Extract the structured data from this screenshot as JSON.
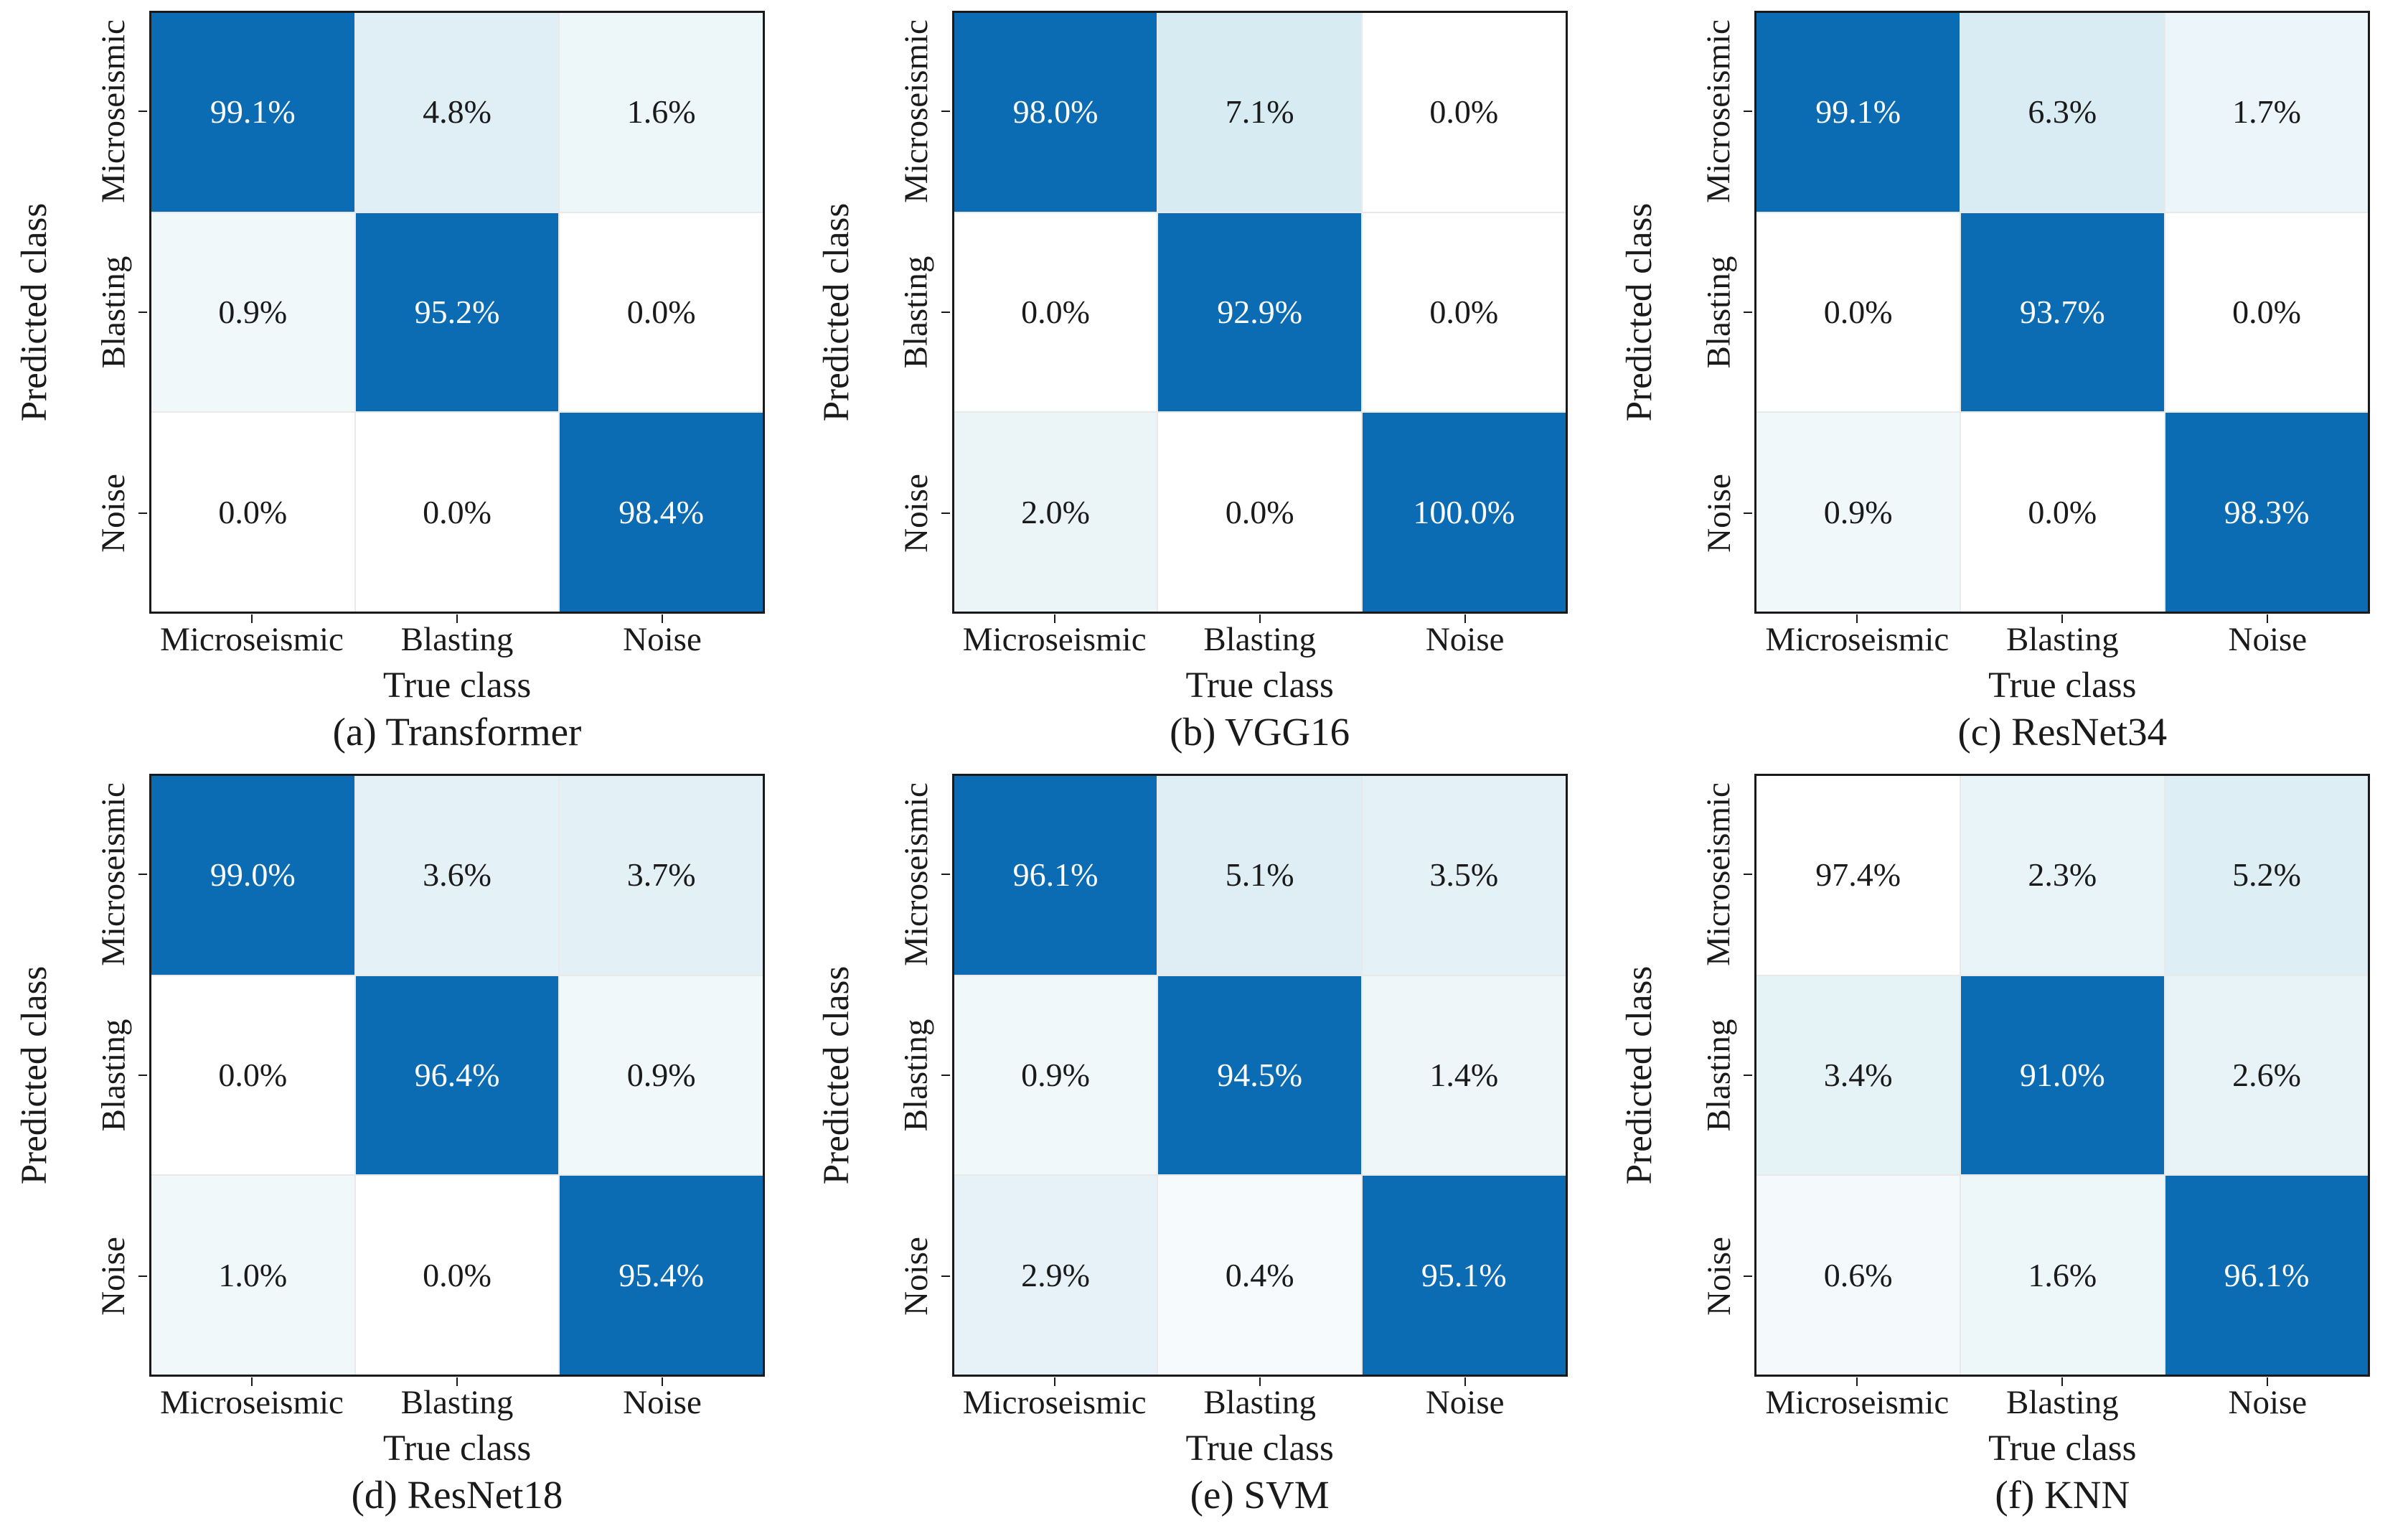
{
  "figure": {
    "y_axis_title": "Predicted class",
    "x_axis_title": "True class",
    "classes": [
      "Microseismic",
      "Blasting",
      "Noise"
    ]
  },
  "colors": {
    "diagonal_blue": "#0b6cb4",
    "diagonal_text": "#ffffff",
    "offdiag_text": "#1a1a1a",
    "grid_border": "#1a1a1a",
    "cell_separator": "#e9e9e9",
    "background": "#ffffff"
  },
  "panels": [
    {
      "caption": "(a) Transformer",
      "cells": [
        [
          {
            "label": "99.1%",
            "bg": "#0b6cb4",
            "fg": "#ffffff"
          },
          {
            "label": "4.8%",
            "bg": "#dfeff5",
            "fg": "#1a1a1a"
          },
          {
            "label": "1.6%",
            "bg": "#edf6f9",
            "fg": "#1a1a1a"
          }
        ],
        [
          {
            "label": "0.9%",
            "bg": "#f1f8fa",
            "fg": "#1a1a1a"
          },
          {
            "label": "95.2%",
            "bg": "#0b6cb4",
            "fg": "#ffffff"
          },
          {
            "label": "0.0%",
            "bg": "#ffffff",
            "fg": "#1a1a1a"
          }
        ],
        [
          {
            "label": "0.0%",
            "bg": "#ffffff",
            "fg": "#1a1a1a"
          },
          {
            "label": "0.0%",
            "bg": "#ffffff",
            "fg": "#1a1a1a"
          },
          {
            "label": "98.4%",
            "bg": "#0b6cb4",
            "fg": "#ffffff"
          }
        ]
      ]
    },
    {
      "caption": "(b) VGG16",
      "cells": [
        [
          {
            "label": "98.0%",
            "bg": "#0b6cb4",
            "fg": "#ffffff"
          },
          {
            "label": "7.1%",
            "bg": "#d6ebf2",
            "fg": "#1a1a1a"
          },
          {
            "label": "0.0%",
            "bg": "#ffffff",
            "fg": "#1a1a1a"
          }
        ],
        [
          {
            "label": "0.0%",
            "bg": "#ffffff",
            "fg": "#1a1a1a"
          },
          {
            "label": "92.9%",
            "bg": "#0b6cb4",
            "fg": "#ffffff"
          },
          {
            "label": "0.0%",
            "bg": "#ffffff",
            "fg": "#1a1a1a"
          }
        ],
        [
          {
            "label": "2.0%",
            "bg": "#ebf5f8",
            "fg": "#1a1a1a"
          },
          {
            "label": "0.0%",
            "bg": "#ffffff",
            "fg": "#1a1a1a"
          },
          {
            "label": "100.0%",
            "bg": "#0b6cb4",
            "fg": "#ffffff"
          }
        ]
      ]
    },
    {
      "caption": "(c) ResNet34",
      "cells": [
        [
          {
            "label": "99.1%",
            "bg": "#0b6cb4",
            "fg": "#ffffff"
          },
          {
            "label": "6.3%",
            "bg": "#d9ecf3",
            "fg": "#1a1a1a"
          },
          {
            "label": "1.7%",
            "bg": "#ecf5f9",
            "fg": "#1a1a1a"
          }
        ],
        [
          {
            "label": "0.0%",
            "bg": "#ffffff",
            "fg": "#1a1a1a"
          },
          {
            "label": "93.7%",
            "bg": "#0b6cb4",
            "fg": "#ffffff"
          },
          {
            "label": "0.0%",
            "bg": "#ffffff",
            "fg": "#1a1a1a"
          }
        ],
        [
          {
            "label": "0.9%",
            "bg": "#f1f8fa",
            "fg": "#1a1a1a"
          },
          {
            "label": "0.0%",
            "bg": "#ffffff",
            "fg": "#1a1a1a"
          },
          {
            "label": "98.3%",
            "bg": "#0b6cb4",
            "fg": "#ffffff"
          }
        ]
      ]
    },
    {
      "caption": "(d) ResNet18",
      "cells": [
        [
          {
            "label": "99.0%",
            "bg": "#0b6cb4",
            "fg": "#ffffff"
          },
          {
            "label": "3.6%",
            "bg": "#e4f1f6",
            "fg": "#1a1a1a"
          },
          {
            "label": "3.7%",
            "bg": "#e3f1f6",
            "fg": "#1a1a1a"
          }
        ],
        [
          {
            "label": "0.0%",
            "bg": "#ffffff",
            "fg": "#1a1a1a"
          },
          {
            "label": "96.4%",
            "bg": "#0b6cb4",
            "fg": "#ffffff"
          },
          {
            "label": "0.9%",
            "bg": "#f1f8fa",
            "fg": "#1a1a1a"
          }
        ],
        [
          {
            "label": "1.0%",
            "bg": "#f0f8fa",
            "fg": "#1a1a1a"
          },
          {
            "label": "0.0%",
            "bg": "#ffffff",
            "fg": "#1a1a1a"
          },
          {
            "label": "95.4%",
            "bg": "#0b6cb4",
            "fg": "#ffffff"
          }
        ]
      ]
    },
    {
      "caption": "(e) SVM",
      "cells": [
        [
          {
            "label": "96.1%",
            "bg": "#0b6cb4",
            "fg": "#ffffff"
          },
          {
            "label": "5.1%",
            "bg": "#deeef4",
            "fg": "#1a1a1a"
          },
          {
            "label": "3.5%",
            "bg": "#e4f1f6",
            "fg": "#1a1a1a"
          }
        ],
        [
          {
            "label": "0.9%",
            "bg": "#f1f8fa",
            "fg": "#1a1a1a"
          },
          {
            "label": "94.5%",
            "bg": "#0b6cb4",
            "fg": "#ffffff"
          },
          {
            "label": "1.4%",
            "bg": "#eef6f9",
            "fg": "#1a1a1a"
          }
        ],
        [
          {
            "label": "2.9%",
            "bg": "#e6f2f7",
            "fg": "#1a1a1a"
          },
          {
            "label": "0.4%",
            "bg": "#f6fafc",
            "fg": "#1a1a1a"
          },
          {
            "label": "95.1%",
            "bg": "#0b6cb4",
            "fg": "#ffffff"
          }
        ]
      ]
    },
    {
      "caption": "(f) KNN",
      "cells": [
        [
          {
            "label": "97.4%",
            "bg": "#ffffff",
            "fg": "#1a1a1a"
          },
          {
            "label": "2.3%",
            "bg": "#e9f4f8",
            "fg": "#1a1a1a"
          },
          {
            "label": "5.2%",
            "bg": "#ddeef4",
            "fg": "#1a1a1a"
          }
        ],
        [
          {
            "label": "3.4%",
            "bg": "#e5f2f6",
            "fg": "#1a1a1a"
          },
          {
            "label": "91.0%",
            "bg": "#0b6cb4",
            "fg": "#ffffff"
          },
          {
            "label": "2.6%",
            "bg": "#e8f3f7",
            "fg": "#1a1a1a"
          }
        ],
        [
          {
            "label": "0.6%",
            "bg": "#f4f9fb",
            "fg": "#1a1a1a"
          },
          {
            "label": "1.6%",
            "bg": "#edf6f9",
            "fg": "#1a1a1a"
          },
          {
            "label": "96.1%",
            "bg": "#0b6cb4",
            "fg": "#ffffff"
          }
        ]
      ]
    }
  ],
  "chart_data": [
    {
      "type": "heatmap",
      "title": "(a) Transformer",
      "xlabel": "True class",
      "ylabel": "Predicted class",
      "x_categories": [
        "Microseismic",
        "Blasting",
        "Noise"
      ],
      "y_categories": [
        "Microseismic",
        "Blasting",
        "Noise"
      ],
      "values_percent": [
        [
          99.1,
          4.8,
          1.6
        ],
        [
          0.9,
          95.2,
          0.0
        ],
        [
          0.0,
          0.0,
          98.4
        ]
      ]
    },
    {
      "type": "heatmap",
      "title": "(b) VGG16",
      "xlabel": "True class",
      "ylabel": "Predicted class",
      "x_categories": [
        "Microseismic",
        "Blasting",
        "Noise"
      ],
      "y_categories": [
        "Microseismic",
        "Blasting",
        "Noise"
      ],
      "values_percent": [
        [
          98.0,
          7.1,
          0.0
        ],
        [
          0.0,
          92.9,
          0.0
        ],
        [
          2.0,
          0.0,
          100.0
        ]
      ]
    },
    {
      "type": "heatmap",
      "title": "(c) ResNet34",
      "xlabel": "True class",
      "ylabel": "Predicted class",
      "x_categories": [
        "Microseismic",
        "Blasting",
        "Noise"
      ],
      "y_categories": [
        "Microseismic",
        "Blasting",
        "Noise"
      ],
      "values_percent": [
        [
          99.1,
          6.3,
          1.7
        ],
        [
          0.0,
          93.7,
          0.0
        ],
        [
          0.9,
          0.0,
          98.3
        ]
      ]
    },
    {
      "type": "heatmap",
      "title": "(d) ResNet18",
      "xlabel": "True class",
      "ylabel": "Predicted class",
      "x_categories": [
        "Microseismic",
        "Blasting",
        "Noise"
      ],
      "y_categories": [
        "Microseismic",
        "Blasting",
        "Noise"
      ],
      "values_percent": [
        [
          99.0,
          3.6,
          3.7
        ],
        [
          0.0,
          96.4,
          0.9
        ],
        [
          1.0,
          0.0,
          95.4
        ]
      ]
    },
    {
      "type": "heatmap",
      "title": "(e) SVM",
      "xlabel": "True class",
      "ylabel": "Predicted class",
      "x_categories": [
        "Microseismic",
        "Blasting",
        "Noise"
      ],
      "y_categories": [
        "Microseismic",
        "Blasting",
        "Noise"
      ],
      "values_percent": [
        [
          96.1,
          5.1,
          3.5
        ],
        [
          0.9,
          94.5,
          1.4
        ],
        [
          2.9,
          0.4,
          95.1
        ]
      ]
    },
    {
      "type": "heatmap",
      "title": "(f) KNN",
      "xlabel": "True class",
      "ylabel": "Predicted class",
      "x_categories": [
        "Microseismic",
        "Blasting",
        "Noise"
      ],
      "y_categories": [
        "Microseismic",
        "Blasting",
        "Noise"
      ],
      "values_percent": [
        [
          97.4,
          2.3,
          5.2
        ],
        [
          3.4,
          91.0,
          2.6
        ],
        [
          0.6,
          1.6,
          96.1
        ]
      ]
    }
  ]
}
